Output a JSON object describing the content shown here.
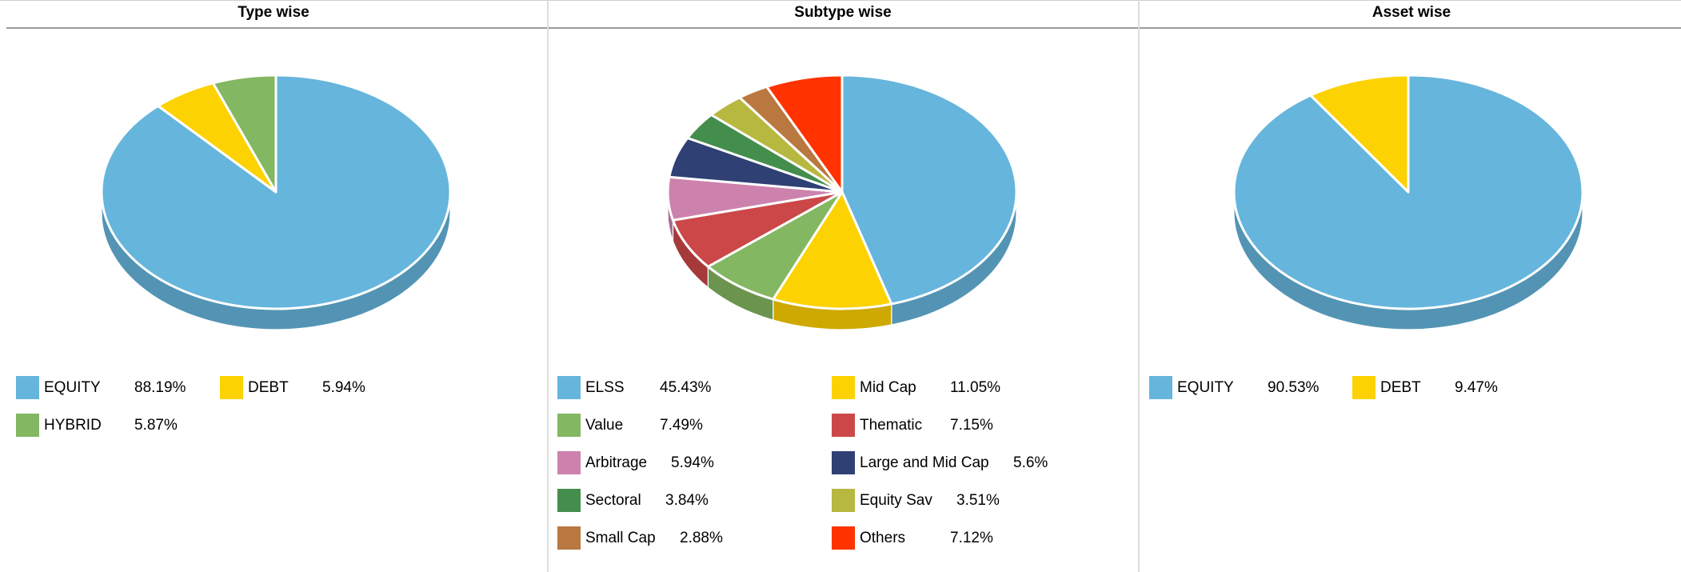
{
  "chart_data": [
    {
      "type": "pie",
      "title": "Type wise",
      "series": [
        {
          "label": "EQUITY",
          "value": 88.19,
          "value_text": "88.19%",
          "color": "#66b5dc",
          "side": "#5394b4"
        },
        {
          "label": "DEBT",
          "value": 5.94,
          "value_text": "5.94%",
          "color": "#fcd202",
          "side": "#cda902"
        },
        {
          "label": "HYBRID",
          "value": 5.87,
          "value_text": "5.87%",
          "color": "#84b761",
          "side": "#6b954f"
        }
      ],
      "legend_columns": 2,
      "legend_position": "bottom"
    },
    {
      "type": "pie",
      "title": "Subtype wise",
      "series": [
        {
          "label": "ELSS",
          "value": 45.43,
          "value_text": "45.43%",
          "color": "#66b5dc",
          "side": "#5394b4"
        },
        {
          "label": "Mid Cap",
          "value": 11.05,
          "value_text": "11.05%",
          "color": "#fcd202",
          "side": "#cda902"
        },
        {
          "label": "Value",
          "value": 7.49,
          "value_text": "7.49%",
          "color": "#84b761",
          "side": "#6b954f"
        },
        {
          "label": "Thematic",
          "value": 7.15,
          "value_text": "7.15%",
          "color": "#cc4748",
          "side": "#a63a3b"
        },
        {
          "label": "Arbitrage",
          "value": 5.94,
          "value_text": "5.94%",
          "color": "#cd82ad",
          "side": "#a76a8d"
        },
        {
          "label": "Large and Mid Cap",
          "value": 5.6,
          "value_text": "5.6%",
          "color": "#2f4074",
          "side": "#26345f"
        },
        {
          "label": "Sectoral",
          "value": 3.84,
          "value_text": "3.84%",
          "color": "#448e4d",
          "side": "#37743f"
        },
        {
          "label": "Equity Sav",
          "value": 3.51,
          "value_text": "3.51%",
          "color": "#b7b83f",
          "side": "#959633"
        },
        {
          "label": "Small Cap",
          "value": 2.88,
          "value_text": "2.88%",
          "color": "#b9783f",
          "side": "#976233"
        },
        {
          "label": "Others",
          "value": 7.12,
          "value_text": "7.12%",
          "color": "#ff3300",
          "side": "#cf2900"
        }
      ],
      "legend_columns": 2,
      "legend_position": "bottom"
    },
    {
      "type": "pie",
      "title": "Asset wise",
      "series": [
        {
          "label": "EQUITY",
          "value": 90.53,
          "value_text": "90.53%",
          "color": "#66b5dc",
          "side": "#5394b4"
        },
        {
          "label": "DEBT",
          "value": 9.47,
          "value_text": "9.47%",
          "color": "#fcd202",
          "side": "#cda902"
        }
      ],
      "legend_columns": 2,
      "legend_position": "bottom"
    }
  ]
}
